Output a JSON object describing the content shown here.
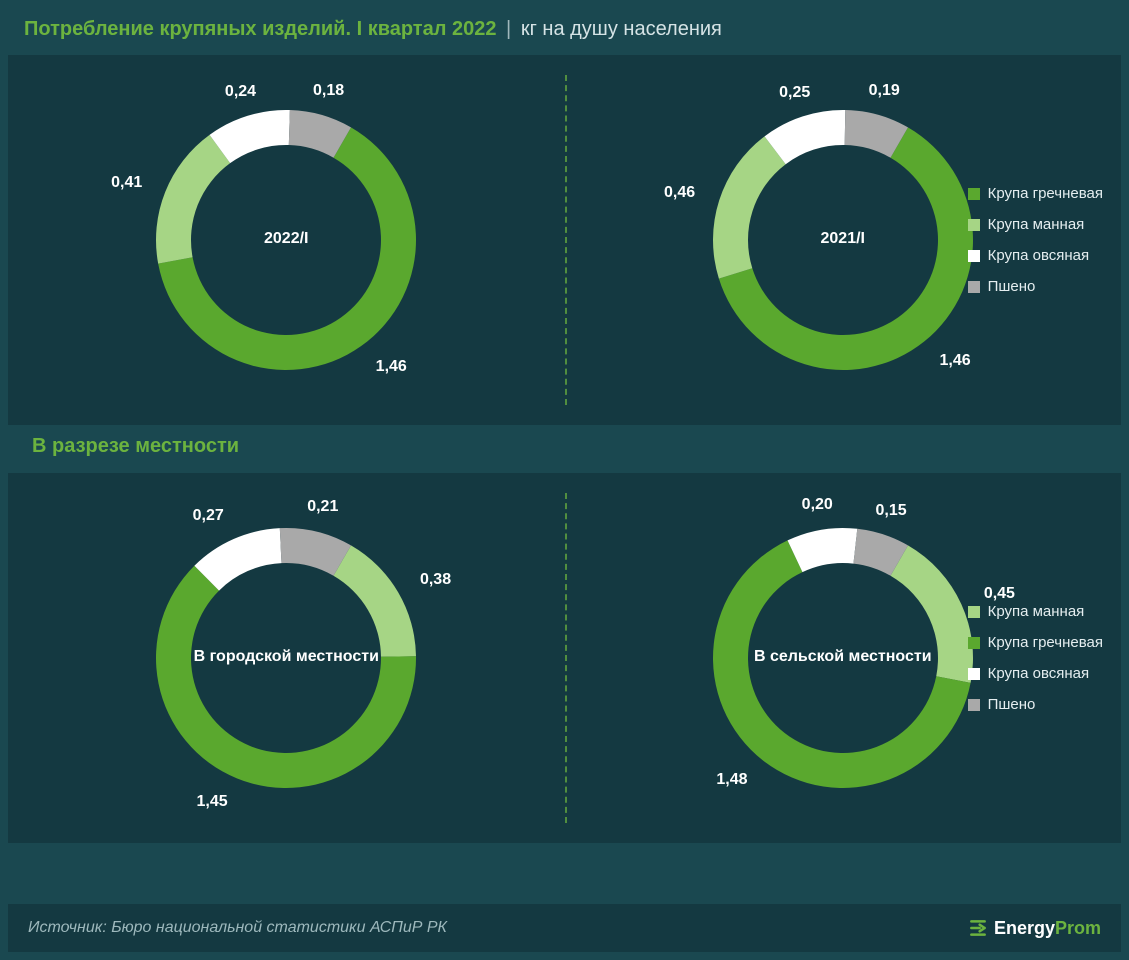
{
  "colors": {
    "background": "#1a4850",
    "panel": "#143941",
    "accent": "#6cb33f",
    "text": "#ffffff",
    "muted": "#9db8bc",
    "series": {
      "buckwheat": "#5aa82e",
      "semolina": "#a6d585",
      "oat": "#ffffff",
      "millet": "#a9a9a9"
    }
  },
  "header": {
    "title_main": "Потребление крупяных изделий. I квартал 2022",
    "title_sep": "|",
    "title_sub": "кг на душу населения"
  },
  "subtitle2": "В разрезе местности",
  "legends": {
    "top": [
      {
        "key": "buckwheat",
        "label": "Крупа гречневая"
      },
      {
        "key": "semolina",
        "label": "Крупа манная"
      },
      {
        "key": "oat",
        "label": "Крупа овсяная"
      },
      {
        "key": "millet",
        "label": "Пшено"
      }
    ],
    "bottom": [
      {
        "key": "semolina",
        "label": "Крупа манная"
      },
      {
        "key": "buckwheat",
        "label": "Крупа гречневая"
      },
      {
        "key": "oat",
        "label": "Крупа овсяная"
      },
      {
        "key": "millet",
        "label": "Пшено"
      }
    ]
  },
  "charts": {
    "top_left": {
      "center": "2022/I",
      "order": [
        "buckwheat",
        "semolina",
        "oat",
        "millet"
      ],
      "segments": {
        "buckwheat": {
          "value": 1.46,
          "label": "1,46"
        },
        "semolina": {
          "value": 0.41,
          "label": "0,41"
        },
        "oat": {
          "value": 0.24,
          "label": "0,24"
        },
        "millet": {
          "value": 0.18,
          "label": "0,18"
        }
      }
    },
    "top_right": {
      "center": "2021/I",
      "order": [
        "buckwheat",
        "semolina",
        "oat",
        "millet"
      ],
      "segments": {
        "buckwheat": {
          "value": 1.46,
          "label": "1,46"
        },
        "semolina": {
          "value": 0.46,
          "label": "0,46"
        },
        "oat": {
          "value": 0.25,
          "label": "0,25"
        },
        "millet": {
          "value": 0.19,
          "label": "0,19"
        }
      }
    },
    "bottom_left": {
      "center": "В городской местности",
      "order": [
        "semolina",
        "buckwheat",
        "oat",
        "millet"
      ],
      "segments": {
        "semolina": {
          "value": 0.38,
          "label": "0,38"
        },
        "buckwheat": {
          "value": 1.45,
          "label": "1,45"
        },
        "oat": {
          "value": 0.27,
          "label": "0,27"
        },
        "millet": {
          "value": 0.21,
          "label": "0,21"
        }
      }
    },
    "bottom_right": {
      "center": "В сельской местности",
      "order": [
        "semolina",
        "buckwheat",
        "oat",
        "millet"
      ],
      "segments": {
        "semolina": {
          "value": 0.45,
          "label": "0,45"
        },
        "buckwheat": {
          "value": 1.48,
          "label": "1,48"
        },
        "oat": {
          "value": 0.2,
          "label": "0,20"
        },
        "millet": {
          "value": 0.15,
          "label": "0,15"
        }
      }
    }
  },
  "donut_style": {
    "outer_radius": 130,
    "inner_radius": 95,
    "start_angle_deg": 30,
    "direction": "clockwise",
    "label_radius": 155,
    "svg_size": 320
  },
  "footer": {
    "source": "Источник: Бюро национальной статистики АСПиР РК",
    "logo_text_1": "Energy",
    "logo_text_2": "Prom"
  }
}
